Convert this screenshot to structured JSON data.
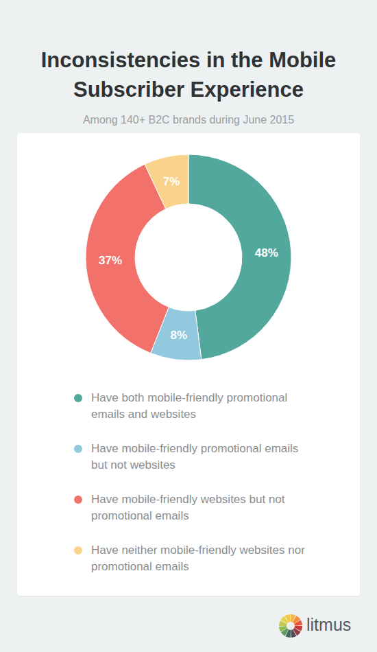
{
  "chart_data": {
    "type": "pie",
    "title": "Inconsistencies in the Mobile Subscriber Experience",
    "subtitle": "Among 140+ B2C brands during June 2015",
    "categories": [
      "Have both mobile-friendly promotional emails and websites",
      "Have mobile-friendly promotional emails but not websites",
      "Have mobile-friendly websites but not promotional emails",
      "Have neither mobile-friendly websites nor promotional emails"
    ],
    "values": [
      48,
      8,
      37,
      7
    ],
    "value_labels": [
      "48%",
      "8%",
      "37%",
      "7%"
    ],
    "colors": [
      "#52a89c",
      "#92c9de",
      "#f2726b",
      "#f9d38c"
    ],
    "data_labels": true,
    "legend": "bottom"
  },
  "footer": {
    "brand": "litmus"
  }
}
